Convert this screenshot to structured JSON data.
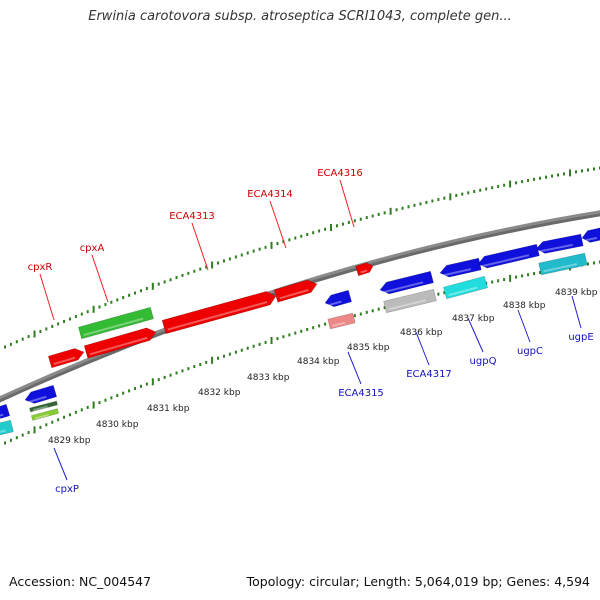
{
  "header": {
    "title": "Erwinia carotovora subsp. atroseptica SCRI1043, complete gen..."
  },
  "footer": {
    "accession": "Accession: NC_004547",
    "summary": "Topology: circular; Length: 5,064,019 bp; Genes: 4,594"
  },
  "colors": {
    "backbone": "#8a8a8a",
    "tick": "#2e7d1e",
    "forward_gene": "#ee0000",
    "reverse_gene": "#1010dd",
    "label_forward": "#cc0000",
    "label_reverse": "#1111bb"
  },
  "scale": {
    "unit": "kbp",
    "ticks": [
      "4829 kbp",
      "4830 kbp",
      "4831 kbp",
      "4832 kbp",
      "4833 kbp",
      "4834 kbp",
      "4835 kbp",
      "4836 kbp",
      "4837 kbp",
      "4838 kbp",
      "4839 kbp"
    ]
  },
  "gene_labels": {
    "forward": [
      "cpxR",
      "cpxA",
      "ECA4313",
      "ECA4314",
      "ECA4316"
    ],
    "reverse": [
      "cpxP",
      "ECA4315",
      "ECA4317",
      "ugpQ",
      "ugpC",
      "ugpE"
    ]
  }
}
